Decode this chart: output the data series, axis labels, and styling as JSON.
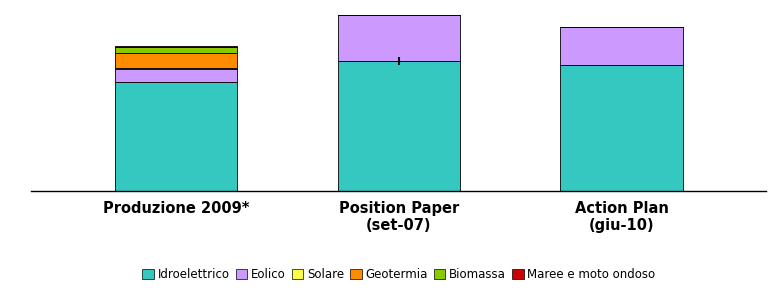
{
  "categories": [
    "Produzione 2009*",
    "Position Paper\n(set-07)",
    "Action Plan\n(giu-10)"
  ],
  "series": {
    "Idroelettrico": [
      130,
      155,
      150
    ],
    "Eolico": [
      15,
      55,
      45
    ],
    "Solare": [
      1,
      0,
      0
    ],
    "Geotermia": [
      18,
      0,
      0
    ],
    "Biomassa": [
      7,
      0,
      0
    ],
    "Maree e moto ondoso": [
      1,
      0,
      0
    ]
  },
  "colors": {
    "Idroelettrico": "#35C8C0",
    "Eolico": "#CC99FF",
    "Solare": "#FFFF44",
    "Geotermia": "#FF8C00",
    "Biomassa": "#88CC00",
    "Maree e moto ondoso": "#CC0000"
  },
  "bar_width": 0.55,
  "ylim": [
    0,
    220
  ],
  "background_color": "#ffffff",
  "legend_fontsize": 8.5,
  "label_fontsize": 10.5
}
